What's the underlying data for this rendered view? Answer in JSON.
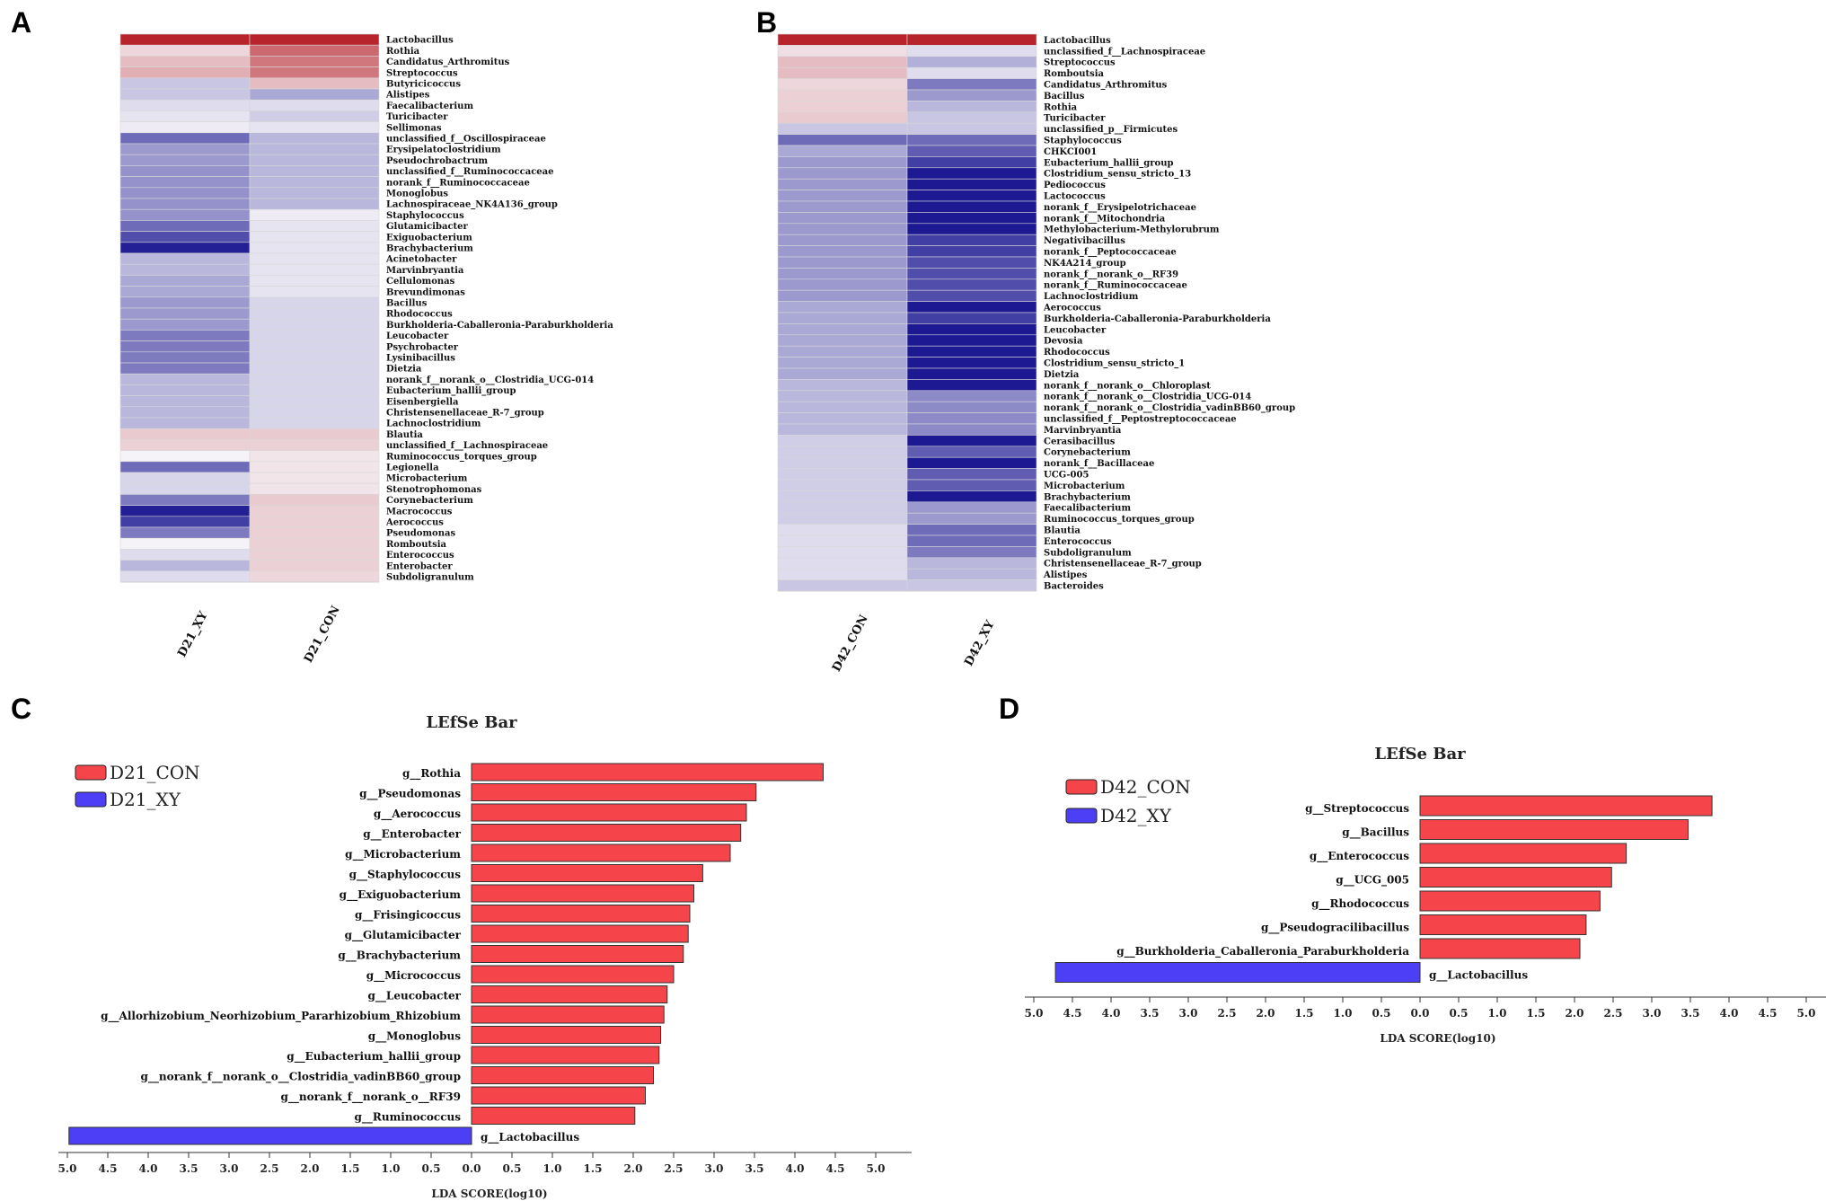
{
  "panels": {
    "a": "A",
    "b": "B",
    "c": "C",
    "d": "D"
  },
  "colors": {
    "bar_con": "#f5454b",
    "bar_xy": "#4d3ff5",
    "heat_high": "#b8242c",
    "heat_mid": "#f5f3f8",
    "heat_low": "#14118f"
  },
  "chart_data": [
    {
      "id": "A",
      "type": "heatmap",
      "columns": [
        "D21_XY",
        "D21_CON"
      ],
      "rows": [
        {
          "genus": "Lactobacillus",
          "values": [
            3.0,
            3.0
          ]
        },
        {
          "genus": "Rothia",
          "values": [
            0.4,
            2.0
          ]
        },
        {
          "genus": "Candidatus_Arthromitus",
          "values": [
            0.8,
            1.8
          ]
        },
        {
          "genus": "Streptococcus",
          "values": [
            1.0,
            1.8
          ]
        },
        {
          "genus": "Butyricicoccus",
          "values": [
            -0.6,
            0.8
          ]
        },
        {
          "genus": "Alistipes",
          "values": [
            -0.6,
            -1.0
          ]
        },
        {
          "genus": "Faecalibacterium",
          "values": [
            -0.3,
            -0.3
          ]
        },
        {
          "genus": "Turicibacter",
          "values": [
            -0.2,
            -0.5
          ]
        },
        {
          "genus": "Sellimonas",
          "values": [
            -0.1,
            -0.2
          ]
        },
        {
          "genus": "unclassified_f__Oscillospiraceae",
          "values": [
            -1.8,
            -0.8
          ]
        },
        {
          "genus": "Erysipelatoclostridium",
          "values": [
            -1.2,
            -0.8
          ]
        },
        {
          "genus": "Pseudochrobactrum",
          "values": [
            -1.2,
            -0.8
          ]
        },
        {
          "genus": "unclassified_f__Ruminococcaceae",
          "values": [
            -1.3,
            -0.8
          ]
        },
        {
          "genus": "norank_f__Ruminococcaceae",
          "values": [
            -1.3,
            -0.8
          ]
        },
        {
          "genus": "Monoglobus",
          "values": [
            -1.3,
            -0.8
          ]
        },
        {
          "genus": "Lachnospiraceae_NK4A136_group",
          "values": [
            -1.3,
            -0.8
          ]
        },
        {
          "genus": "Staphylococcus",
          "values": [
            -1.3,
            -0.1
          ]
        },
        {
          "genus": "Glutamicibacter",
          "values": [
            -1.8,
            -0.2
          ]
        },
        {
          "genus": "Exiguobacterium",
          "values": [
            -2.2,
            -0.2
          ]
        },
        {
          "genus": "Brachybacterium",
          "values": [
            -2.8,
            -0.2
          ]
        },
        {
          "genus": "Acinetobacter",
          "values": [
            -0.8,
            -0.2
          ]
        },
        {
          "genus": "Marvinbryantia",
          "values": [
            -0.8,
            -0.2
          ]
        },
        {
          "genus": "Cellulomonas",
          "values": [
            -1.0,
            -0.2
          ]
        },
        {
          "genus": "Brevundimonas",
          "values": [
            -1.0,
            -0.2
          ]
        },
        {
          "genus": "Bacillus",
          "values": [
            -1.2,
            -0.4
          ]
        },
        {
          "genus": "Rhodococcus",
          "values": [
            -1.2,
            -0.4
          ]
        },
        {
          "genus": "Burkholderia-Caballeronia-Paraburkholderia",
          "values": [
            -1.2,
            -0.4
          ]
        },
        {
          "genus": "Leucobacter",
          "values": [
            -1.6,
            -0.4
          ]
        },
        {
          "genus": "Psychrobacter",
          "values": [
            -1.6,
            -0.4
          ]
        },
        {
          "genus": "Lysinibacillus",
          "values": [
            -1.6,
            -0.4
          ]
        },
        {
          "genus": "Dietzia",
          "values": [
            -1.6,
            -0.4
          ]
        },
        {
          "genus": "norank_f__norank_o__Clostridia_UCG-014",
          "values": [
            -0.8,
            -0.4
          ]
        },
        {
          "genus": "Eubacterium_hallii_group",
          "values": [
            -0.8,
            -0.4
          ]
        },
        {
          "genus": "Eisenbergiella",
          "values": [
            -0.8,
            -0.4
          ]
        },
        {
          "genus": "Christensenellaceae_R-7_group",
          "values": [
            -0.8,
            -0.4
          ]
        },
        {
          "genus": "Lachnoclostridium",
          "values": [
            -0.8,
            -0.4
          ]
        },
        {
          "genus": "Blautia",
          "values": [
            0.6,
            0.6
          ]
        },
        {
          "genus": "unclassified_f__Lachnospiraceae",
          "values": [
            0.5,
            0.5
          ]
        },
        {
          "genus": "Ruminococcus_torques_group",
          "values": [
            0.0,
            0.2
          ]
        },
        {
          "genus": "Legionella",
          "values": [
            -1.8,
            0.2
          ]
        },
        {
          "genus": "Microbacterium",
          "values": [
            -0.4,
            0.2
          ]
        },
        {
          "genus": "Stenotrophomonas",
          "values": [
            -0.4,
            0.2
          ]
        },
        {
          "genus": "Corynebacterium",
          "values": [
            -1.6,
            0.6
          ]
        },
        {
          "genus": "Macrococcus",
          "values": [
            -2.8,
            0.5
          ]
        },
        {
          "genus": "Aerococcus",
          "values": [
            -2.4,
            0.5
          ]
        },
        {
          "genus": "Pseudomonas",
          "values": [
            -1.6,
            0.5
          ]
        },
        {
          "genus": "Romboutsia",
          "values": [
            0.0,
            0.5
          ]
        },
        {
          "genus": "Enterococcus",
          "values": [
            -0.3,
            0.5
          ]
        },
        {
          "genus": "Enterobacter",
          "values": [
            -0.8,
            0.5
          ]
        },
        {
          "genus": "Subdoligranulum",
          "values": [
            -0.3,
            0.4
          ]
        }
      ]
    },
    {
      "id": "B",
      "type": "heatmap",
      "columns": [
        "D42_CON",
        "D42_XY"
      ],
      "rows": [
        {
          "genus": "Lactobacillus",
          "values": [
            3.0,
            3.0
          ]
        },
        {
          "genus": "unclassified_f__Lachnospiraceae",
          "values": [
            0.3,
            -0.3
          ]
        },
        {
          "genus": "Streptococcus",
          "values": [
            0.8,
            -0.9
          ]
        },
        {
          "genus": "Romboutsia",
          "values": [
            0.8,
            -0.3
          ]
        },
        {
          "genus": "Candidatus_Arthromitus",
          "values": [
            0.4,
            -1.6
          ]
        },
        {
          "genus": "Bacillus",
          "values": [
            0.5,
            -1.2
          ]
        },
        {
          "genus": "Rothia",
          "values": [
            0.5,
            -0.8
          ]
        },
        {
          "genus": "Turicibacter",
          "values": [
            0.6,
            -0.6
          ]
        },
        {
          "genus": "unclassified_p__Firmicutes",
          "values": [
            -0.6,
            -0.6
          ]
        },
        {
          "genus": "Staphylococcus",
          "values": [
            -1.8,
            -1.8
          ]
        },
        {
          "genus": "CHKCI001",
          "values": [
            -1.0,
            -2.0
          ]
        },
        {
          "genus": "Eubacterium_hallii_group",
          "values": [
            -1.2,
            -2.4
          ]
        },
        {
          "genus": "Clostridium_sensu_stricto_13",
          "values": [
            -1.2,
            -2.9
          ]
        },
        {
          "genus": "Pediococcus",
          "values": [
            -1.2,
            -2.9
          ]
        },
        {
          "genus": "Lactococcus",
          "values": [
            -1.2,
            -2.9
          ]
        },
        {
          "genus": "norank_f__Erysipelotrichaceae",
          "values": [
            -1.2,
            -2.9
          ]
        },
        {
          "genus": "norank_f__Mitochondria",
          "values": [
            -1.2,
            -2.9
          ]
        },
        {
          "genus": "Methylobacterium-Methylorubrum",
          "values": [
            -1.2,
            -2.9
          ]
        },
        {
          "genus": "Negativibacillus",
          "values": [
            -1.2,
            -2.4
          ]
        },
        {
          "genus": "norank_f__Peptococcaceae",
          "values": [
            -1.2,
            -2.4
          ]
        },
        {
          "genus": "NK4A214_group",
          "values": [
            -1.2,
            -2.2
          ]
        },
        {
          "genus": "norank_f__norank_o__RF39",
          "values": [
            -1.2,
            -2.2
          ]
        },
        {
          "genus": "norank_f__Ruminococcaceae",
          "values": [
            -1.2,
            -2.2
          ]
        },
        {
          "genus": "Lachnoclostridium",
          "values": [
            -1.2,
            -2.2
          ]
        },
        {
          "genus": "Aerococcus",
          "values": [
            -1.0,
            -2.9
          ]
        },
        {
          "genus": "Burkholderia-Caballeronia-Paraburkholderia",
          "values": [
            -1.0,
            -2.4
          ]
        },
        {
          "genus": "Leucobacter",
          "values": [
            -1.0,
            -2.9
          ]
        },
        {
          "genus": "Devosia",
          "values": [
            -1.0,
            -2.9
          ]
        },
        {
          "genus": "Rhodococcus",
          "values": [
            -1.0,
            -2.9
          ]
        },
        {
          "genus": "Clostridium_sensu_stricto_1",
          "values": [
            -1.0,
            -2.9
          ]
        },
        {
          "genus": "Dietzia",
          "values": [
            -1.0,
            -2.9
          ]
        },
        {
          "genus": "norank_f__norank_o__Chloroplast",
          "values": [
            -0.8,
            -2.9
          ]
        },
        {
          "genus": "norank_f__norank_o__Clostridia_UCG-014",
          "values": [
            -0.8,
            -1.4
          ]
        },
        {
          "genus": "norank_f__norank_o__Clostridia_vadinBB60_group",
          "values": [
            -0.8,
            -1.4
          ]
        },
        {
          "genus": "unclassified_f__Peptostreptococcaceae",
          "values": [
            -0.8,
            -1.4
          ]
        },
        {
          "genus": "Marvinbryantia",
          "values": [
            -0.8,
            -1.4
          ]
        },
        {
          "genus": "Cerasibacillus",
          "values": [
            -0.5,
            -2.9
          ]
        },
        {
          "genus": "Corynebacterium",
          "values": [
            -0.5,
            -2.0
          ]
        },
        {
          "genus": "norank_f__Bacillaceae",
          "values": [
            -0.5,
            -2.9
          ]
        },
        {
          "genus": "UCG-005",
          "values": [
            -0.5,
            -2.0
          ]
        },
        {
          "genus": "Microbacterium",
          "values": [
            -0.5,
            -2.0
          ]
        },
        {
          "genus": "Brachybacterium",
          "values": [
            -0.5,
            -2.9
          ]
        },
        {
          "genus": "Faecalibacterium",
          "values": [
            -0.5,
            -1.2
          ]
        },
        {
          "genus": "Ruminococcus_torques_group",
          "values": [
            -0.5,
            -1.2
          ]
        },
        {
          "genus": "Blautia",
          "values": [
            -0.3,
            -1.8
          ]
        },
        {
          "genus": "Enterococcus",
          "values": [
            -0.3,
            -1.8
          ]
        },
        {
          "genus": "Subdoligranulum",
          "values": [
            -0.3,
            -1.6
          ]
        },
        {
          "genus": "Christensenellaceae_R-7_group",
          "values": [
            -0.3,
            -0.8
          ]
        },
        {
          "genus": "Alistipes",
          "values": [
            -0.3,
            -0.8
          ]
        },
        {
          "genus": "Bacteroides",
          "values": [
            -0.6,
            -0.6
          ]
        }
      ]
    },
    {
      "id": "C",
      "type": "bar",
      "title": "LEfSe Bar",
      "xlabel": "LDA SCORE(log10)",
      "xlim": [
        -5,
        5
      ],
      "ticks": [
        "5.0",
        "4.5",
        "4.0",
        "3.5",
        "3.0",
        "2.5",
        "2.0",
        "1.5",
        "1.0",
        "0.5",
        "0.0",
        "0.5",
        "1.0",
        "1.5",
        "2.0",
        "2.5",
        "3.0",
        "3.5",
        "4.0",
        "4.5",
        "5.0"
      ],
      "legend": [
        {
          "name": "D21_CON",
          "color": "#f5454b"
        },
        {
          "name": "D21_XY",
          "color": "#4d3ff5"
        }
      ],
      "bars": [
        {
          "label": "g__Rothia",
          "value": 4.35,
          "group": "D21_CON"
        },
        {
          "label": "g__Pseudomonas",
          "value": 3.52,
          "group": "D21_CON"
        },
        {
          "label": "g__Aerococcus",
          "value": 3.4,
          "group": "D21_CON"
        },
        {
          "label": "g__Enterobacter",
          "value": 3.33,
          "group": "D21_CON"
        },
        {
          "label": "g__Microbacterium",
          "value": 3.2,
          "group": "D21_CON"
        },
        {
          "label": "g__Staphylococcus",
          "value": 2.86,
          "group": "D21_CON"
        },
        {
          "label": "g__Exiguobacterium",
          "value": 2.75,
          "group": "D21_CON"
        },
        {
          "label": "g__Frisingicoccus",
          "value": 2.7,
          "group": "D21_CON"
        },
        {
          "label": "g__Glutamicibacter",
          "value": 2.68,
          "group": "D21_CON"
        },
        {
          "label": "g__Brachybacterium",
          "value": 2.62,
          "group": "D21_CON"
        },
        {
          "label": "g__Micrococcus",
          "value": 2.5,
          "group": "D21_CON"
        },
        {
          "label": "g__Leucobacter",
          "value": 2.42,
          "group": "D21_CON"
        },
        {
          "label": "g__Allorhizobium_Neorhizobium_Pararhizobium_Rhizobium",
          "value": 2.38,
          "group": "D21_CON"
        },
        {
          "label": "g__Monoglobus",
          "value": 2.34,
          "group": "D21_CON"
        },
        {
          "label": "g__Eubacterium_hallii_group",
          "value": 2.32,
          "group": "D21_CON"
        },
        {
          "label": "g__norank_f__norank_o__Clostridia_vadinBB60_group",
          "value": 2.25,
          "group": "D21_CON"
        },
        {
          "label": "g__norank_f__norank_o__RF39",
          "value": 2.15,
          "group": "D21_CON"
        },
        {
          "label": "g__Ruminococcus",
          "value": 2.02,
          "group": "D21_CON"
        },
        {
          "label": "g__Lactobacillus",
          "value": -4.98,
          "group": "D21_XY"
        }
      ]
    },
    {
      "id": "D",
      "type": "bar",
      "title": "LEfSe Bar",
      "xlabel": "LDA SCORE(log10)",
      "xlim": [
        -5,
        5
      ],
      "ticks": [
        "5.0",
        "4.5",
        "4.0",
        "3.5",
        "3.0",
        "2.5",
        "2.0",
        "1.5",
        "1.0",
        "0.5",
        "0.0",
        "0.5",
        "1.0",
        "1.5",
        "2.0",
        "2.5",
        "3.0",
        "3.5",
        "4.0",
        "4.5",
        "5.0"
      ],
      "legend": [
        {
          "name": "D42_CON",
          "color": "#f5454b"
        },
        {
          "name": "D42_XY",
          "color": "#4d3ff5"
        }
      ],
      "bars": [
        {
          "label": "g__Streptococcus",
          "value": 3.78,
          "group": "D42_CON"
        },
        {
          "label": "g__Bacillus",
          "value": 3.47,
          "group": "D42_CON"
        },
        {
          "label": "g__Enterococcus",
          "value": 2.67,
          "group": "D42_CON"
        },
        {
          "label": "g__UCG_005",
          "value": 2.48,
          "group": "D42_CON"
        },
        {
          "label": "g__Rhodococcus",
          "value": 2.33,
          "group": "D42_CON"
        },
        {
          "label": "g__Pseudogracilibacillus",
          "value": 2.15,
          "group": "D42_CON"
        },
        {
          "label": "g__Burkholderia_Caballeronia_Paraburkholderia",
          "value": 2.07,
          "group": "D42_CON"
        },
        {
          "label": "g__Lactobacillus",
          "value": -4.72,
          "group": "D42_XY"
        }
      ]
    }
  ]
}
